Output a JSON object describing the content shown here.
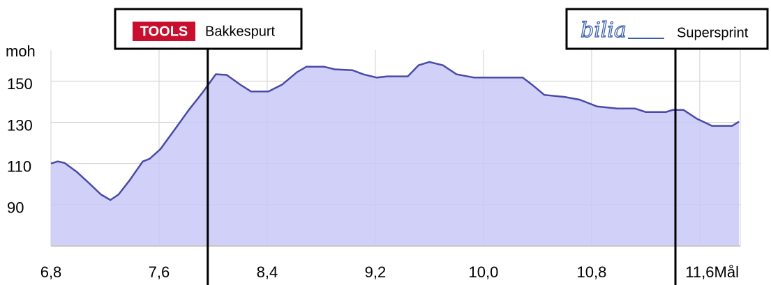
{
  "chart_data": {
    "type": "area",
    "ylabel": "moh",
    "xlim": [
      6.8,
      11.9
    ],
    "ylim": [
      70,
      165
    ],
    "xticks": [
      {
        "value": 6.8,
        "label": "6,8"
      },
      {
        "value": 7.6,
        "label": "7,6"
      },
      {
        "value": 8.4,
        "label": "8,4"
      },
      {
        "value": 9.2,
        "label": "9,2"
      },
      {
        "value": 10.0,
        "label": "10,0"
      },
      {
        "value": 10.8,
        "label": "10,8"
      },
      {
        "value": 11.6,
        "label": "11,6"
      },
      {
        "value": 11.9,
        "label": "Mål"
      }
    ],
    "yticks": [
      90,
      110,
      130,
      150
    ],
    "grid": true,
    "series": [
      {
        "color": "#4a4aa8",
        "fill": "#c8c8f8",
        "x": [
          6.8,
          6.85,
          6.9,
          6.99,
          7.09,
          7.17,
          7.24,
          7.3,
          7.38,
          7.48,
          7.53,
          7.61,
          7.71,
          7.82,
          7.92,
          8.02,
          8.1,
          8.2,
          8.28,
          8.41,
          8.51,
          8.62,
          8.69,
          8.82,
          8.9,
          9.03,
          9.11,
          9.21,
          9.29,
          9.44,
          9.52,
          9.6,
          9.7,
          9.8,
          9.93,
          10.09,
          10.29,
          10.37,
          10.45,
          10.6,
          10.71,
          10.84,
          10.99,
          11.12,
          11.2,
          11.35,
          11.4,
          11.48,
          11.58,
          11.69,
          11.84,
          11.89
        ],
        "values": [
          110,
          111,
          110.3,
          106,
          100,
          95,
          92.3,
          95,
          101.7,
          111,
          112.3,
          117,
          126,
          136,
          144.3,
          153.3,
          153,
          148.3,
          145,
          145,
          148.3,
          154.3,
          157,
          157,
          155.7,
          155.3,
          153.3,
          151.7,
          152.3,
          152.3,
          157.7,
          159.3,
          157.7,
          153.3,
          151.7,
          151.7,
          151.7,
          147.7,
          143.3,
          142.3,
          141,
          137.7,
          136.7,
          136.7,
          135,
          135,
          136,
          136,
          131.7,
          128.3,
          128.3,
          130.3
        ]
      }
    ],
    "markers": [
      {
        "x": 7.96,
        "logo": "TOOLS",
        "label": "Bakkespurt"
      },
      {
        "x": 11.42,
        "logo": "bilia",
        "label": "Supersprint"
      }
    ]
  }
}
